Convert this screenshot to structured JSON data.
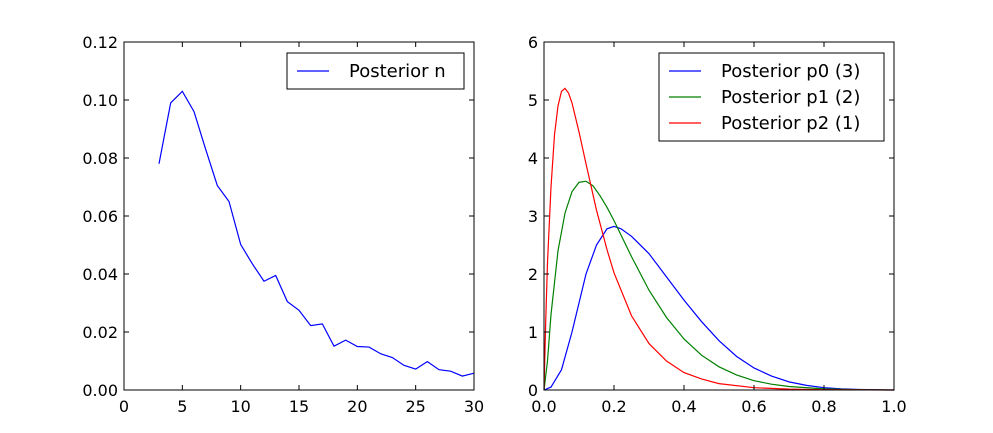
{
  "chart_data": [
    {
      "type": "line",
      "title": "",
      "xlabel": "",
      "ylabel": "",
      "xlim": [
        0,
        30
      ],
      "ylim": [
        0,
        0.12
      ],
      "xticks": [
        0,
        5,
        10,
        15,
        20,
        25,
        30
      ],
      "xtick_labels": [
        "0",
        "5",
        "10",
        "15",
        "20",
        "25",
        "30"
      ],
      "yticks": [
        0,
        0.02,
        0.04,
        0.06,
        0.08,
        0.1,
        0.12
      ],
      "ytick_labels": [
        "0.00",
        "0.02",
        "0.04",
        "0.06",
        "0.08",
        "0.10",
        "0.12"
      ],
      "grid": false,
      "legend": "top-right",
      "series": [
        {
          "name": "Posterior n",
          "color": "#0000ff",
          "x": [
            3,
            4,
            5,
            6,
            7,
            8,
            9,
            10,
            11,
            12,
            13,
            14,
            15,
            16,
            17,
            18,
            19,
            20,
            21,
            22,
            23,
            24,
            25,
            26,
            27,
            28,
            29,
            30
          ],
          "y": [
            0.078,
            0.099,
            0.103,
            0.096,
            0.083,
            0.0705,
            0.065,
            0.0502,
            0.0435,
            0.0375,
            0.0395,
            0.0305,
            0.0275,
            0.0222,
            0.0228,
            0.0151,
            0.0172,
            0.015,
            0.0148,
            0.0125,
            0.0112,
            0.0085,
            0.0072,
            0.0098,
            0.007,
            0.0065,
            0.0048,
            0.0058
          ]
        }
      ]
    },
    {
      "type": "line",
      "title": "",
      "xlabel": "",
      "ylabel": "",
      "xlim": [
        0,
        1
      ],
      "ylim": [
        0,
        6
      ],
      "xticks": [
        0,
        0.2,
        0.4,
        0.6,
        0.8,
        1.0
      ],
      "xtick_labels": [
        "0.0",
        "0.2",
        "0.4",
        "0.6",
        "0.8",
        "1.0"
      ],
      "yticks": [
        0,
        1,
        2,
        3,
        4,
        5,
        6
      ],
      "ytick_labels": [
        "0",
        "1",
        "2",
        "3",
        "4",
        "5",
        "6"
      ],
      "grid": false,
      "legend": "top-right",
      "series": [
        {
          "name": "Posterior p0 (3)",
          "color": "#0000ff",
          "x": [
            0,
            0.02,
            0.05,
            0.08,
            0.1,
            0.12,
            0.15,
            0.18,
            0.2,
            0.22,
            0.25,
            0.3,
            0.35,
            0.4,
            0.45,
            0.5,
            0.55,
            0.6,
            0.65,
            0.7,
            0.75,
            0.8,
            0.85,
            0.9,
            0.95,
            1.0
          ],
          "y": [
            0,
            0.05,
            0.35,
            1.0,
            1.5,
            2.0,
            2.5,
            2.78,
            2.82,
            2.78,
            2.65,
            2.35,
            1.95,
            1.55,
            1.18,
            0.85,
            0.58,
            0.38,
            0.24,
            0.14,
            0.08,
            0.04,
            0.02,
            0.01,
            0.005,
            0
          ]
        },
        {
          "name": "Posterior p1 (2)",
          "color": "#008000",
          "x": [
            0,
            0.01,
            0.02,
            0.04,
            0.06,
            0.08,
            0.1,
            0.12,
            0.14,
            0.16,
            0.18,
            0.2,
            0.25,
            0.3,
            0.35,
            0.4,
            0.45,
            0.5,
            0.55,
            0.6,
            0.65,
            0.7,
            0.8,
            0.9,
            1.0
          ],
          "y": [
            0,
            0.5,
            1.3,
            2.4,
            3.05,
            3.42,
            3.58,
            3.6,
            3.52,
            3.35,
            3.15,
            2.92,
            2.3,
            1.72,
            1.25,
            0.88,
            0.6,
            0.4,
            0.26,
            0.16,
            0.1,
            0.06,
            0.02,
            0.005,
            0
          ]
        },
        {
          "name": "Posterior p2 (1)",
          "color": "#ff0000",
          "x": [
            0,
            0.005,
            0.01,
            0.02,
            0.03,
            0.04,
            0.05,
            0.06,
            0.07,
            0.08,
            0.1,
            0.12,
            0.15,
            0.18,
            0.2,
            0.25,
            0.3,
            0.35,
            0.4,
            0.45,
            0.5,
            0.6,
            0.7,
            0.8,
            1.0
          ],
          "y": [
            0,
            1.2,
            2.2,
            3.5,
            4.4,
            4.9,
            5.15,
            5.2,
            5.12,
            4.95,
            4.45,
            3.9,
            3.1,
            2.42,
            2.02,
            1.28,
            0.8,
            0.5,
            0.3,
            0.19,
            0.11,
            0.04,
            0.015,
            0.005,
            0
          ]
        }
      ]
    }
  ]
}
